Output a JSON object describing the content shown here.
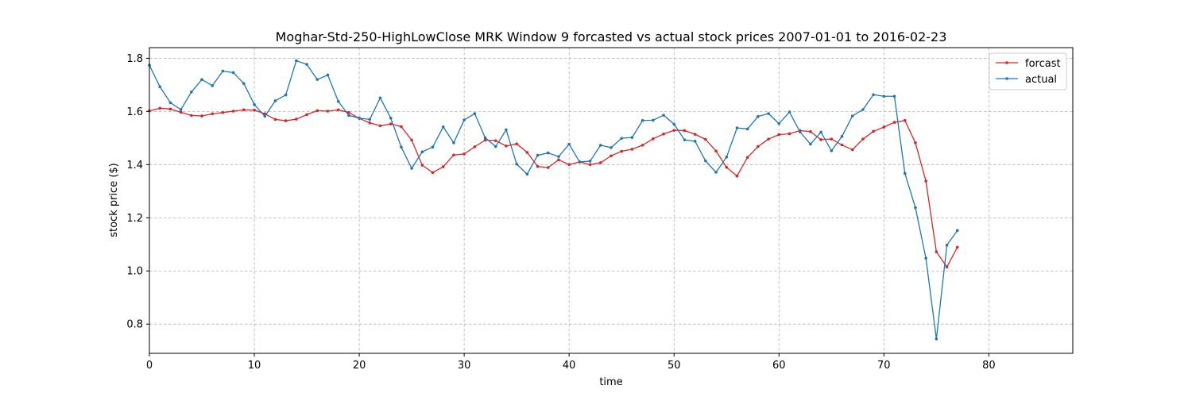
{
  "chart_data": {
    "type": "line",
    "title": "Moghar-Std-250-HighLowClose MRK Window 9 forcasted vs actual stock prices 2007-01-01 to 2016-02-23",
    "xlabel": "time",
    "ylabel": "stock price ($)",
    "xlim": [
      0,
      88
    ],
    "ylim": [
      0.69,
      1.84
    ],
    "x_ticks": [
      0,
      10,
      20,
      30,
      40,
      50,
      60,
      70,
      80
    ],
    "y_ticks": [
      0.8,
      1.0,
      1.2,
      1.4,
      1.6,
      1.8
    ],
    "grid": true,
    "legend_position": "top-right",
    "series": [
      {
        "name": "forcast",
        "color": "#d62728",
        "values": [
          1.602,
          1.612,
          1.609,
          1.597,
          1.585,
          1.583,
          1.591,
          1.596,
          1.601,
          1.606,
          1.605,
          1.591,
          1.57,
          1.565,
          1.571,
          1.588,
          1.603,
          1.601,
          1.606,
          1.596,
          1.574,
          1.557,
          1.546,
          1.553,
          1.543,
          1.492,
          1.398,
          1.37,
          1.392,
          1.436,
          1.44,
          1.467,
          1.492,
          1.49,
          1.47,
          1.478,
          1.446,
          1.393,
          1.389,
          1.418,
          1.4,
          1.41,
          1.4,
          1.407,
          1.433,
          1.45,
          1.458,
          1.473,
          1.497,
          1.515,
          1.529,
          1.528,
          1.514,
          1.495,
          1.451,
          1.39,
          1.357,
          1.427,
          1.468,
          1.496,
          1.513,
          1.516,
          1.528,
          1.524,
          1.494,
          1.496,
          1.474,
          1.456,
          1.496,
          1.525,
          1.541,
          1.559,
          1.566,
          1.482,
          1.338,
          1.072,
          1.015,
          1.089
        ]
      },
      {
        "name": "actual",
        "color": "#1f77b4",
        "values": [
          1.774,
          1.693,
          1.633,
          1.607,
          1.673,
          1.72,
          1.697,
          1.752,
          1.746,
          1.705,
          1.626,
          1.582,
          1.64,
          1.662,
          1.791,
          1.777,
          1.72,
          1.737,
          1.638,
          1.585,
          1.575,
          1.57,
          1.651,
          1.575,
          1.466,
          1.386,
          1.448,
          1.466,
          1.542,
          1.482,
          1.568,
          1.592,
          1.501,
          1.468,
          1.531,
          1.402,
          1.364,
          1.435,
          1.444,
          1.43,
          1.477,
          1.41,
          1.413,
          1.473,
          1.464,
          1.499,
          1.502,
          1.566,
          1.567,
          1.586,
          1.552,
          1.493,
          1.488,
          1.414,
          1.371,
          1.428,
          1.538,
          1.534,
          1.581,
          1.592,
          1.554,
          1.598,
          1.523,
          1.477,
          1.522,
          1.452,
          1.506,
          1.583,
          1.607,
          1.663,
          1.657,
          1.657,
          1.367,
          1.238,
          1.048,
          0.744,
          1.097,
          1.152
        ]
      }
    ]
  }
}
